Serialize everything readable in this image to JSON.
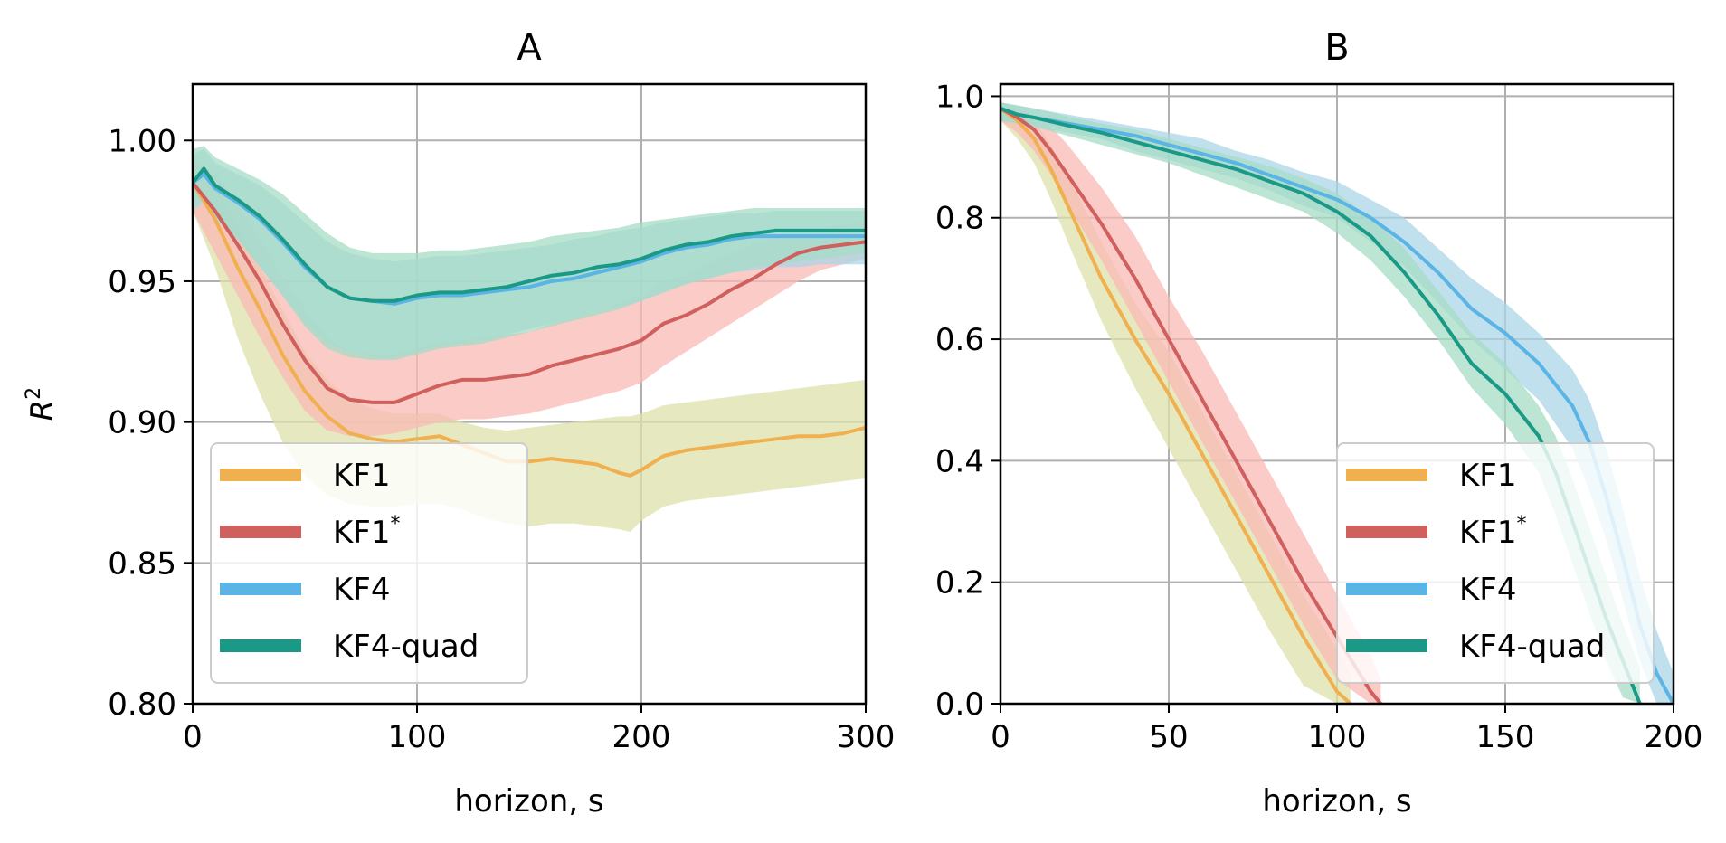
{
  "chart_data": [
    {
      "type": "line",
      "title": "A",
      "xlabel": "horizon, s",
      "ylabel": "R²",
      "ylabel_base": "R",
      "ylabel_sup": "2",
      "xlim": [
        0,
        300
      ],
      "ylim": [
        0.8,
        1.02
      ],
      "xticks": [
        0,
        100,
        200,
        300
      ],
      "xtick_labels": [
        "0",
        "100",
        "200",
        "300"
      ],
      "yticks": [
        0.8,
        0.85,
        0.9,
        0.95,
        1.0
      ],
      "ytick_labels": [
        "0.80",
        "0.85",
        "0.90",
        "0.95",
        "1.00"
      ],
      "grid": true,
      "legend_position": "lower-left",
      "series": [
        {
          "name": "KF1",
          "label": "KF1",
          "label_sup": "",
          "color": "#f0b050",
          "band_color": "#dde2ab",
          "x": [
            0,
            10,
            20,
            30,
            40,
            50,
            60,
            70,
            80,
            90,
            100,
            110,
            120,
            130,
            140,
            150,
            160,
            170,
            180,
            190,
            195,
            200,
            210,
            220,
            230,
            240,
            250,
            260,
            270,
            280,
            290,
            300
          ],
          "y": [
            0.985,
            0.972,
            0.955,
            0.94,
            0.924,
            0.911,
            0.902,
            0.896,
            0.894,
            0.893,
            0.894,
            0.895,
            0.892,
            0.889,
            0.886,
            0.886,
            0.887,
            0.886,
            0.885,
            0.882,
            0.881,
            0.883,
            0.888,
            0.89,
            0.891,
            0.892,
            0.893,
            0.894,
            0.895,
            0.895,
            0.896,
            0.898
          ],
          "lower": [
            0.975,
            0.955,
            0.93,
            0.91,
            0.893,
            0.881,
            0.874,
            0.871,
            0.87,
            0.87,
            0.871,
            0.871,
            0.869,
            0.866,
            0.864,
            0.863,
            0.864,
            0.864,
            0.863,
            0.862,
            0.861,
            0.865,
            0.87,
            0.872,
            0.873,
            0.874,
            0.875,
            0.876,
            0.877,
            0.878,
            0.879,
            0.88
          ],
          "upper": [
            0.995,
            0.985,
            0.97,
            0.955,
            0.94,
            0.925,
            0.915,
            0.908,
            0.905,
            0.903,
            0.903,
            0.903,
            0.9,
            0.898,
            0.897,
            0.898,
            0.899,
            0.9,
            0.901,
            0.902,
            0.902,
            0.903,
            0.906,
            0.907,
            0.908,
            0.909,
            0.91,
            0.911,
            0.912,
            0.913,
            0.914,
            0.915
          ]
        },
        {
          "name": "KF1*",
          "label": "KF1",
          "label_sup": "*",
          "color": "#d0605e",
          "band_color": "#f9b9b6",
          "x": [
            0,
            10,
            20,
            30,
            40,
            50,
            60,
            70,
            80,
            90,
            100,
            110,
            120,
            130,
            140,
            150,
            160,
            170,
            180,
            190,
            200,
            210,
            220,
            230,
            240,
            250,
            260,
            270,
            280,
            290,
            300
          ],
          "y": [
            0.985,
            0.975,
            0.963,
            0.95,
            0.935,
            0.922,
            0.912,
            0.908,
            0.907,
            0.907,
            0.91,
            0.913,
            0.915,
            0.915,
            0.916,
            0.917,
            0.92,
            0.922,
            0.924,
            0.926,
            0.929,
            0.935,
            0.938,
            0.942,
            0.947,
            0.951,
            0.956,
            0.96,
            0.962,
            0.963,
            0.964
          ],
          "lower": [
            0.975,
            0.96,
            0.945,
            0.93,
            0.916,
            0.904,
            0.897,
            0.895,
            0.895,
            0.896,
            0.898,
            0.9,
            0.901,
            0.901,
            0.902,
            0.903,
            0.905,
            0.907,
            0.909,
            0.911,
            0.914,
            0.92,
            0.925,
            0.93,
            0.935,
            0.94,
            0.945,
            0.95,
            0.954,
            0.956,
            0.958
          ],
          "upper": [
            0.993,
            0.988,
            0.978,
            0.965,
            0.952,
            0.94,
            0.93,
            0.925,
            0.924,
            0.924,
            0.926,
            0.928,
            0.929,
            0.93,
            0.931,
            0.932,
            0.935,
            0.937,
            0.939,
            0.942,
            0.945,
            0.95,
            0.952,
            0.956,
            0.96,
            0.963,
            0.966,
            0.968,
            0.969,
            0.97,
            0.971
          ]
        },
        {
          "name": "KF4",
          "label": "KF4",
          "label_sup": "",
          "color": "#5ab4e5",
          "band_color": "#a9d6e6",
          "x": [
            0,
            5,
            10,
            20,
            30,
            40,
            50,
            60,
            70,
            80,
            90,
            100,
            110,
            120,
            130,
            140,
            150,
            160,
            170,
            180,
            190,
            200,
            210,
            220,
            230,
            240,
            250,
            260,
            270,
            280,
            290,
            300
          ],
          "y": [
            0.985,
            0.988,
            0.983,
            0.978,
            0.972,
            0.964,
            0.955,
            0.948,
            0.944,
            0.943,
            0.942,
            0.944,
            0.945,
            0.945,
            0.946,
            0.947,
            0.948,
            0.95,
            0.951,
            0.953,
            0.955,
            0.957,
            0.96,
            0.962,
            0.963,
            0.965,
            0.966,
            0.966,
            0.966,
            0.966,
            0.966,
            0.966
          ],
          "lower": [
            0.975,
            0.978,
            0.972,
            0.965,
            0.955,
            0.945,
            0.935,
            0.928,
            0.925,
            0.923,
            0.923,
            0.925,
            0.927,
            0.928,
            0.929,
            0.931,
            0.933,
            0.935,
            0.937,
            0.939,
            0.941,
            0.943,
            0.946,
            0.949,
            0.951,
            0.953,
            0.954,
            0.955,
            0.955,
            0.956,
            0.956,
            0.956
          ],
          "upper": [
            0.995,
            0.997,
            0.992,
            0.988,
            0.984,
            0.978,
            0.971,
            0.964,
            0.96,
            0.958,
            0.957,
            0.958,
            0.959,
            0.959,
            0.96,
            0.961,
            0.962,
            0.963,
            0.965,
            0.966,
            0.968,
            0.969,
            0.971,
            0.972,
            0.973,
            0.974,
            0.974,
            0.975,
            0.975,
            0.975,
            0.975,
            0.975
          ]
        },
        {
          "name": "KF4-quad",
          "label": "KF4-quad",
          "label_sup": "",
          "color": "#1a9a86",
          "band_color": "#a5dcc6",
          "x": [
            0,
            5,
            10,
            20,
            30,
            40,
            50,
            60,
            70,
            80,
            90,
            100,
            110,
            120,
            130,
            140,
            150,
            160,
            170,
            180,
            190,
            200,
            210,
            220,
            230,
            240,
            250,
            260,
            270,
            280,
            290,
            300
          ],
          "y": [
            0.985,
            0.99,
            0.984,
            0.979,
            0.973,
            0.965,
            0.956,
            0.948,
            0.944,
            0.943,
            0.943,
            0.945,
            0.946,
            0.946,
            0.947,
            0.948,
            0.95,
            0.952,
            0.953,
            0.955,
            0.956,
            0.958,
            0.961,
            0.963,
            0.964,
            0.966,
            0.967,
            0.968,
            0.968,
            0.968,
            0.968,
            0.968
          ],
          "lower": [
            0.975,
            0.98,
            0.973,
            0.965,
            0.955,
            0.945,
            0.934,
            0.926,
            0.923,
            0.922,
            0.922,
            0.924,
            0.926,
            0.927,
            0.928,
            0.93,
            0.932,
            0.934,
            0.936,
            0.938,
            0.94,
            0.943,
            0.946,
            0.949,
            0.951,
            0.953,
            0.955,
            0.956,
            0.957,
            0.958,
            0.959,
            0.96
          ],
          "upper": [
            0.997,
            0.998,
            0.994,
            0.99,
            0.986,
            0.981,
            0.974,
            0.967,
            0.962,
            0.96,
            0.96,
            0.96,
            0.961,
            0.961,
            0.962,
            0.963,
            0.964,
            0.966,
            0.967,
            0.968,
            0.969,
            0.971,
            0.972,
            0.973,
            0.974,
            0.975,
            0.976,
            0.976,
            0.976,
            0.976,
            0.976,
            0.976
          ]
        }
      ]
    },
    {
      "type": "line",
      "title": "B",
      "xlabel": "horizon, s",
      "ylabel": "",
      "xlim": [
        0,
        200
      ],
      "ylim": [
        0.0,
        1.02
      ],
      "xticks": [
        0,
        50,
        100,
        150,
        200
      ],
      "xtick_labels": [
        "0",
        "50",
        "100",
        "150",
        "200"
      ],
      "yticks": [
        0.0,
        0.2,
        0.4,
        0.6,
        0.8,
        1.0
      ],
      "ytick_labels": [
        "0.0",
        "0.2",
        "0.4",
        "0.6",
        "0.8",
        "1.0"
      ],
      "grid": true,
      "legend_position": "lower-right",
      "series": [
        {
          "name": "KF1",
          "label": "KF1",
          "label_sup": "",
          "color": "#f0b050",
          "band_color": "#dde2ab",
          "x": [
            0,
            5,
            10,
            15,
            20,
            30,
            40,
            50,
            60,
            70,
            80,
            90,
            100,
            104
          ],
          "y": [
            0.98,
            0.96,
            0.93,
            0.88,
            0.82,
            0.7,
            0.6,
            0.51,
            0.41,
            0.31,
            0.21,
            0.11,
            0.02,
            0.0
          ],
          "lower": [
            0.96,
            0.93,
            0.89,
            0.83,
            0.76,
            0.63,
            0.52,
            0.42,
            0.32,
            0.22,
            0.12,
            0.03,
            0.0,
            0.0
          ],
          "upper": [
            0.99,
            0.98,
            0.96,
            0.92,
            0.87,
            0.76,
            0.66,
            0.58,
            0.48,
            0.38,
            0.28,
            0.18,
            0.09,
            0.05
          ]
        },
        {
          "name": "KF1*",
          "label": "KF1",
          "label_sup": "*",
          "color": "#d0605e",
          "band_color": "#f9b9b6",
          "x": [
            0,
            5,
            10,
            15,
            20,
            30,
            40,
            50,
            60,
            70,
            80,
            90,
            100,
            110,
            113
          ],
          "y": [
            0.98,
            0.965,
            0.945,
            0.91,
            0.87,
            0.79,
            0.7,
            0.6,
            0.5,
            0.4,
            0.3,
            0.2,
            0.11,
            0.02,
            0.0
          ],
          "lower": [
            0.96,
            0.94,
            0.91,
            0.87,
            0.82,
            0.73,
            0.63,
            0.53,
            0.43,
            0.33,
            0.23,
            0.13,
            0.04,
            0.0,
            0.0
          ],
          "upper": [
            0.99,
            0.98,
            0.97,
            0.95,
            0.92,
            0.85,
            0.77,
            0.67,
            0.58,
            0.48,
            0.38,
            0.28,
            0.18,
            0.08,
            0.04
          ]
        },
        {
          "name": "KF4",
          "label": "KF4",
          "label_sup": "",
          "color": "#5ab4e5",
          "band_color": "#a9d6e6",
          "x": [
            0,
            5,
            10,
            20,
            30,
            40,
            50,
            60,
            70,
            80,
            90,
            100,
            110,
            120,
            130,
            140,
            150,
            160,
            170,
            175,
            180,
            185,
            190,
            195,
            200
          ],
          "y": [
            0.98,
            0.97,
            0.965,
            0.955,
            0.945,
            0.935,
            0.92,
            0.905,
            0.89,
            0.87,
            0.85,
            0.83,
            0.8,
            0.76,
            0.71,
            0.65,
            0.61,
            0.56,
            0.49,
            0.43,
            0.34,
            0.24,
            0.13,
            0.05,
            0.0
          ],
          "lower": [
            0.96,
            0.955,
            0.95,
            0.94,
            0.93,
            0.91,
            0.895,
            0.88,
            0.865,
            0.845,
            0.82,
            0.8,
            0.76,
            0.72,
            0.66,
            0.6,
            0.55,
            0.5,
            0.42,
            0.35,
            0.27,
            0.17,
            0.07,
            0.0,
            0.0
          ],
          "upper": [
            0.99,
            0.985,
            0.98,
            0.97,
            0.96,
            0.95,
            0.94,
            0.93,
            0.91,
            0.895,
            0.875,
            0.86,
            0.83,
            0.8,
            0.75,
            0.7,
            0.66,
            0.61,
            0.55,
            0.5,
            0.42,
            0.32,
            0.21,
            0.12,
            0.05
          ]
        },
        {
          "name": "KF4-quad",
          "label": "KF4-quad",
          "label_sup": "",
          "color": "#1a9a86",
          "band_color": "#a5dcc6",
          "x": [
            0,
            5,
            10,
            20,
            30,
            40,
            50,
            60,
            70,
            80,
            90,
            100,
            110,
            120,
            130,
            140,
            150,
            160,
            165,
            170,
            175,
            180,
            185,
            190
          ],
          "y": [
            0.98,
            0.97,
            0.965,
            0.952,
            0.94,
            0.925,
            0.91,
            0.895,
            0.88,
            0.86,
            0.84,
            0.81,
            0.77,
            0.71,
            0.64,
            0.56,
            0.51,
            0.44,
            0.38,
            0.3,
            0.22,
            0.14,
            0.07,
            0.0
          ],
          "lower": [
            0.96,
            0.955,
            0.95,
            0.935,
            0.92,
            0.905,
            0.89,
            0.87,
            0.85,
            0.83,
            0.81,
            0.775,
            0.73,
            0.67,
            0.6,
            0.52,
            0.46,
            0.38,
            0.31,
            0.23,
            0.15,
            0.07,
            0.01,
            0.0
          ],
          "upper": [
            0.99,
            0.985,
            0.98,
            0.967,
            0.955,
            0.945,
            0.93,
            0.915,
            0.9,
            0.885,
            0.865,
            0.84,
            0.8,
            0.75,
            0.68,
            0.61,
            0.56,
            0.49,
            0.44,
            0.37,
            0.29,
            0.21,
            0.13,
            0.06
          ]
        }
      ]
    }
  ]
}
